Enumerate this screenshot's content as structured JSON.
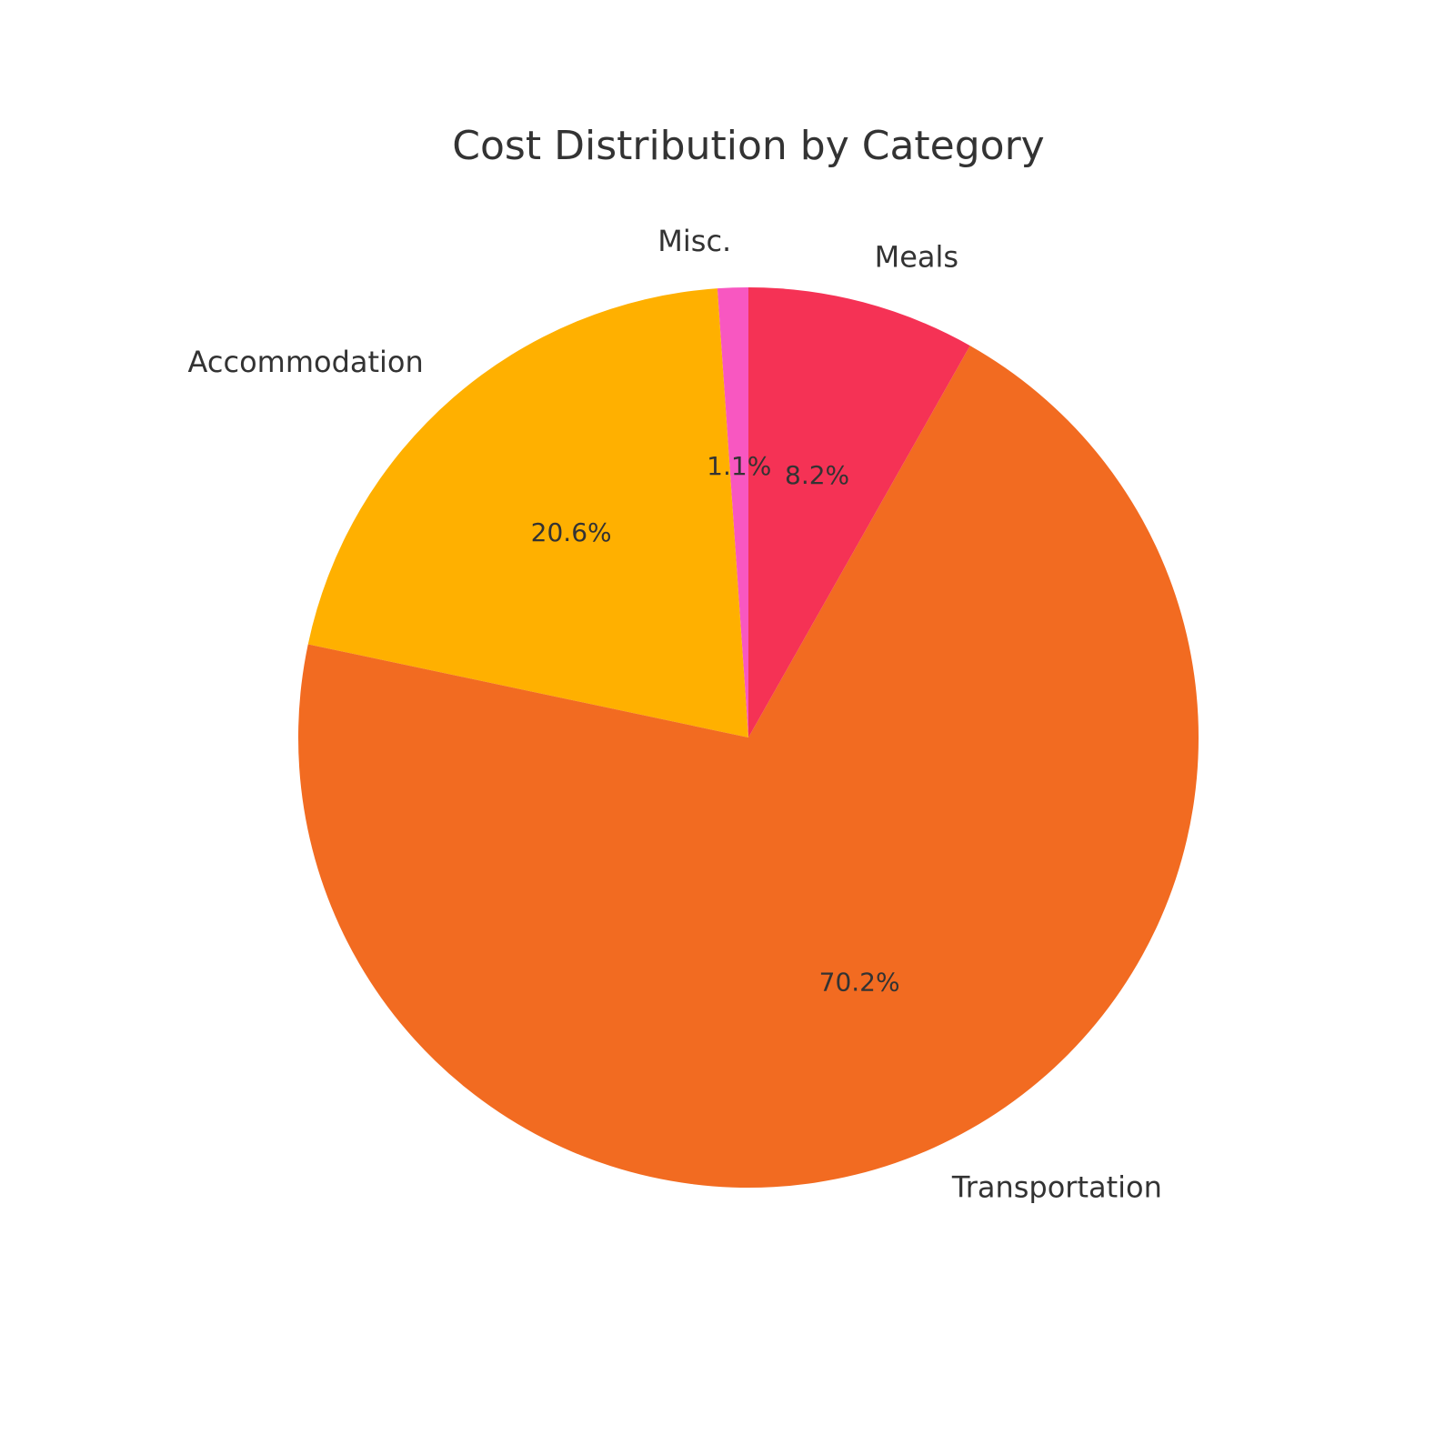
{
  "chart_data": {
    "type": "pie",
    "title": "Cost Distribution by Category",
    "start_angle_deg": 90,
    "direction": "counterclockwise",
    "slices": [
      {
        "label": "Misc.",
        "value": 1.1,
        "pct_label": "1.1%",
        "color": "#F857C1"
      },
      {
        "label": "Accommodation",
        "value": 20.6,
        "pct_label": "20.6%",
        "color": "#FFB000"
      },
      {
        "label": "Transportation",
        "value": 70.2,
        "pct_label": "70.2%",
        "color": "#F26B21"
      },
      {
        "label": "Meals",
        "value": 8.2,
        "pct_label": "8.2%",
        "color": "#F53255"
      }
    ]
  }
}
